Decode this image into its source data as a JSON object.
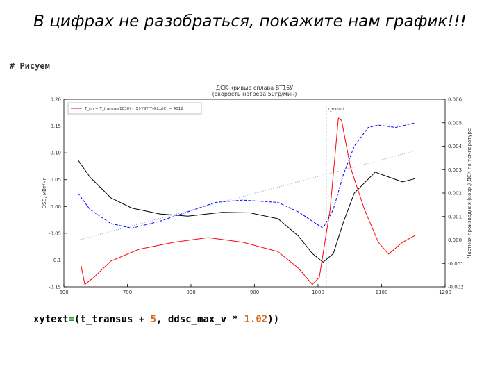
{
  "title": "В цифрах не разобраться, покажите нам график!!!",
  "code": {
    "comment": "# Рисуем",
    "line": [
      "xytext",
      "=",
      "(t_transus + ",
      "5",
      ", ddsc_max_v * ",
      "1.02",
      "))"
    ]
  },
  "chart_data": {
    "type": "line",
    "title": "ДСК-кривые сплава ВТ16У",
    "subtitle": "(скорость нагрева 50гр/мин)",
    "y_label": "DSC, мВт/мг",
    "y2_label": "Частная производная (корр.) ДСК по температуре",
    "annotation": {
      "text": "T_transus",
      "x": 1013
    },
    "xlim": [
      600,
      1200
    ],
    "xticks": [
      600,
      700,
      800,
      900,
      1000,
      1100,
      1200
    ],
    "ylim": [
      -0.15,
      0.2
    ],
    "yticks": [
      -0.15,
      -0.1,
      -0.05,
      {
        "value": 0,
        "label": "0.00"
      },
      0.05,
      {
        "value": 0.1,
        "label": "0.10"
      },
      0.15,
      {
        "value": 0.2,
        "label": "0.20"
      }
    ],
    "y2lim": [
      -0.002,
      0.006
    ],
    "y2ticks": [
      -0.002,
      -0.001,
      {
        "value": 0,
        "label": "0.000"
      },
      0.001,
      0.002,
      0.003,
      0.004,
      0.005,
      0.006
    ],
    "series": [
      {
        "color": "#000000",
        "dash": "solid",
        "x": [
          622,
          641,
          674,
          707,
          751,
          795,
          849,
          893,
          937,
          969,
          991,
          1008,
          1024,
          1040,
          1057,
          1090,
          1111,
          1133,
          1153
        ],
        "values": [
          0.087,
          0.055,
          0.016,
          -0.003,
          -0.014,
          -0.018,
          -0.011,
          -0.012,
          -0.023,
          -0.055,
          -0.088,
          -0.104,
          -0.088,
          -0.029,
          0.025,
          0.064,
          0.055,
          0.046,
          0.052
        ]
      },
      {
        "name": "T_пп − T_transus(1030) · (X)·YST(T(&lcp)C) − 4012",
        "color": "#ff0000",
        "dash": "solid",
        "axis": "y2",
        "x": [
          627,
          633,
          647,
          674,
          718,
          773,
          827,
          882,
          937,
          969,
          991,
          1002,
          1019,
          1032,
          1037,
          1051,
          1073,
          1095,
          1111,
          1133,
          1153
        ],
        "values": [
          -0.0011,
          -0.0019,
          -0.0016,
          -0.0009,
          -0.0004,
          -0.0001,
          0.0001,
          -0.0001,
          -0.0005,
          -0.0012,
          -0.0019,
          -0.0016,
          0.0013,
          0.0052,
          0.0051,
          0.0031,
          0.0013,
          -0.0001,
          -0.0006,
          -0.0001,
          0.0002
        ]
      },
      {
        "color": "#0000ff",
        "dash": "dashed",
        "axis": "y2",
        "x": [
          622,
          641,
          674,
          707,
          751,
          795,
          838,
          882,
          937,
          969,
          991,
          1008,
          1024,
          1040,
          1057,
          1079,
          1095,
          1122,
          1153
        ],
        "values": [
          0.002,
          0.0013,
          0.0007,
          0.0005,
          0.0008,
          0.0012,
          0.0016,
          0.0017,
          0.0016,
          0.0012,
          0.0008,
          0.0005,
          0.0013,
          0.0028,
          0.004,
          0.0048,
          0.0049,
          0.0048,
          0.005
        ]
      },
      {
        "color": "#7fa7d9",
        "dash": "dotted",
        "x": [
          625,
          1153
        ],
        "values": [
          -0.062,
          0.104
        ]
      }
    ],
    "legend": "upper left"
  }
}
